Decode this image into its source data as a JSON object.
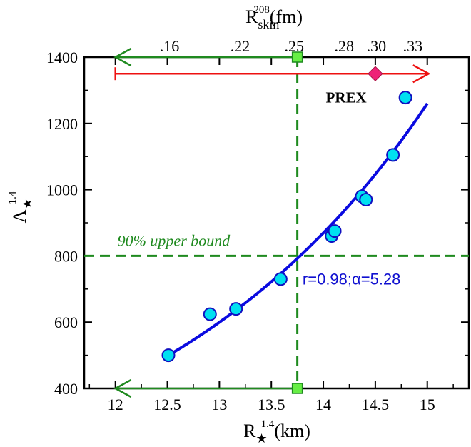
{
  "chart_data": {
    "type": "scatter",
    "xlim": [
      11.7,
      15.4
    ],
    "ylim": [
      400,
      1400
    ],
    "x_ticks": [
      12,
      12.5,
      13,
      13.5,
      14,
      14.5,
      15
    ],
    "x_tick_labels": [
      "12",
      "12.5",
      "13",
      "13.5",
      "14",
      "14.5",
      "15"
    ],
    "y_ticks": [
      400,
      600,
      800,
      1000,
      1200,
      1400
    ],
    "y_tick_labels": [
      "400",
      "600",
      "800",
      "1000",
      "1200",
      "1400"
    ],
    "top_ticks": [
      {
        "label": ".16",
        "x": 12.52
      },
      {
        "label": ".22",
        "x": 13.2
      },
      {
        "label": ".25",
        "x": 13.72
      },
      {
        "label": ".28",
        "x": 14.2
      },
      {
        "label": ".30",
        "x": 14.51
      },
      {
        "label": ".33",
        "x": 14.86
      }
    ],
    "xlabel": {
      "base": "R",
      "sub": "★",
      "sup": "1.4",
      "unit": "(km)"
    },
    "ylabel": {
      "base": "Λ",
      "sub": "★",
      "sup": "1.4"
    },
    "top_label": {
      "base": "R",
      "sub": "skin",
      "sup": "208",
      "unit": "(fm)"
    },
    "series": [
      {
        "points": [
          {
            "x": 12.51,
            "y": 500
          },
          {
            "x": 12.91,
            "y": 624
          },
          {
            "x": 13.16,
            "y": 640
          },
          {
            "x": 13.59,
            "y": 730
          },
          {
            "x": 14.08,
            "y": 860
          },
          {
            "x": 14.11,
            "y": 875
          },
          {
            "x": 14.37,
            "y": 980
          },
          {
            "x": 14.41,
            "y": 970
          },
          {
            "x": 14.67,
            "y": 1105
          },
          {
            "x": 14.79,
            "y": 1278
          }
        ]
      }
    ],
    "fit": {
      "x_start": 12.5,
      "x_end": 15.0,
      "y_start": 498,
      "y_end": 1260,
      "ref_x": 13.75,
      "ref_y": 800,
      "alpha": 5.28
    },
    "upper_bound": {
      "y": 800,
      "x": 13.75,
      "label": "90% upper bound"
    },
    "fit_label": "r=0.98;α=5.28",
    "prex": {
      "label": "PREX",
      "x": 14.5,
      "y": 1350,
      "x_min": 12.0,
      "x_max": 15.0
    },
    "arrow_left_top": {
      "x_from": 13.75,
      "x_to": 12.0,
      "y": 1400
    },
    "arrow_left_bottom": {
      "x_from": 13.75,
      "x_to": 12.0,
      "y": 400
    },
    "colors": {
      "points_fill": "#00e0f0",
      "points_stroke": "#1010c0",
      "fit_line": "#0a0ae0",
      "bound": "#1f8a1f",
      "arrows": "#1f8a1f",
      "square_fill": "#66ee44",
      "prex": "#ee1111",
      "diamond": "#ee2277"
    }
  }
}
